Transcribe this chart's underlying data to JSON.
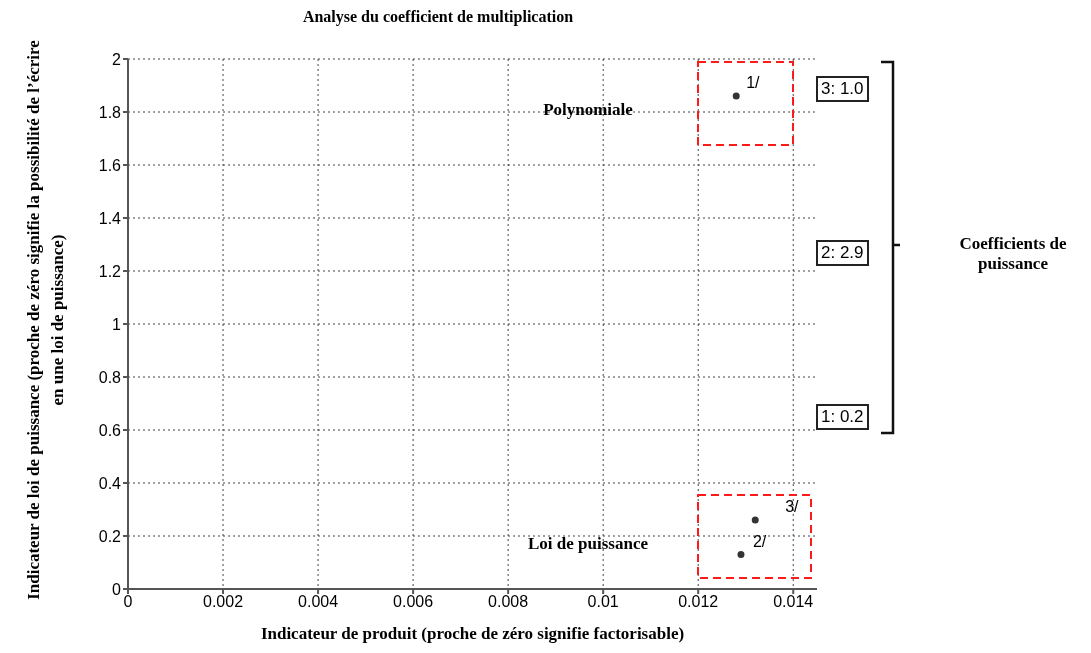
{
  "chart_data": {
    "type": "scatter",
    "title": "Analyse du coefficient de multiplication",
    "xlabel": "Indicateur de produit (proche de zéro signifie factorisable)",
    "ylabel": "Indicateur de loi de puissance (proche de zéro signifie la possibilité de l’écrire en une loi de puissance)",
    "x": [
      0.0128,
      0.0129,
      0.0132
    ],
    "series": [
      {
        "color": "#333333",
        "values": [
          1.86,
          0.13,
          0.26
        ]
      }
    ],
    "xlim": [
      0,
      0.0145
    ],
    "xticks": [
      0,
      0.002,
      0.004,
      0.006,
      0.008,
      0.01,
      0.012,
      0.014
    ],
    "ylim": [
      0,
      2
    ],
    "yticks": [
      0,
      0.2,
      0.4,
      0.6,
      0.8,
      1,
      1.2,
      1.4,
      1.6,
      1.8,
      2
    ],
    "grid": true,
    "legend": false,
    "marker": "circle",
    "annotations": [
      {
        "text": "1/",
        "x": 0.0128,
        "y": 1.86
      },
      {
        "text": "2/",
        "x": 0.0129,
        "y": 0.13
      },
      {
        "text": "3/",
        "x": 0.0132,
        "y": 0.26
      },
      "Polynomiale",
      "Loi de puissance",
      "3: 1.0",
      "2: 2.9",
      "1: 0.2",
      "Coefficients de puissance"
    ]
  }
}
